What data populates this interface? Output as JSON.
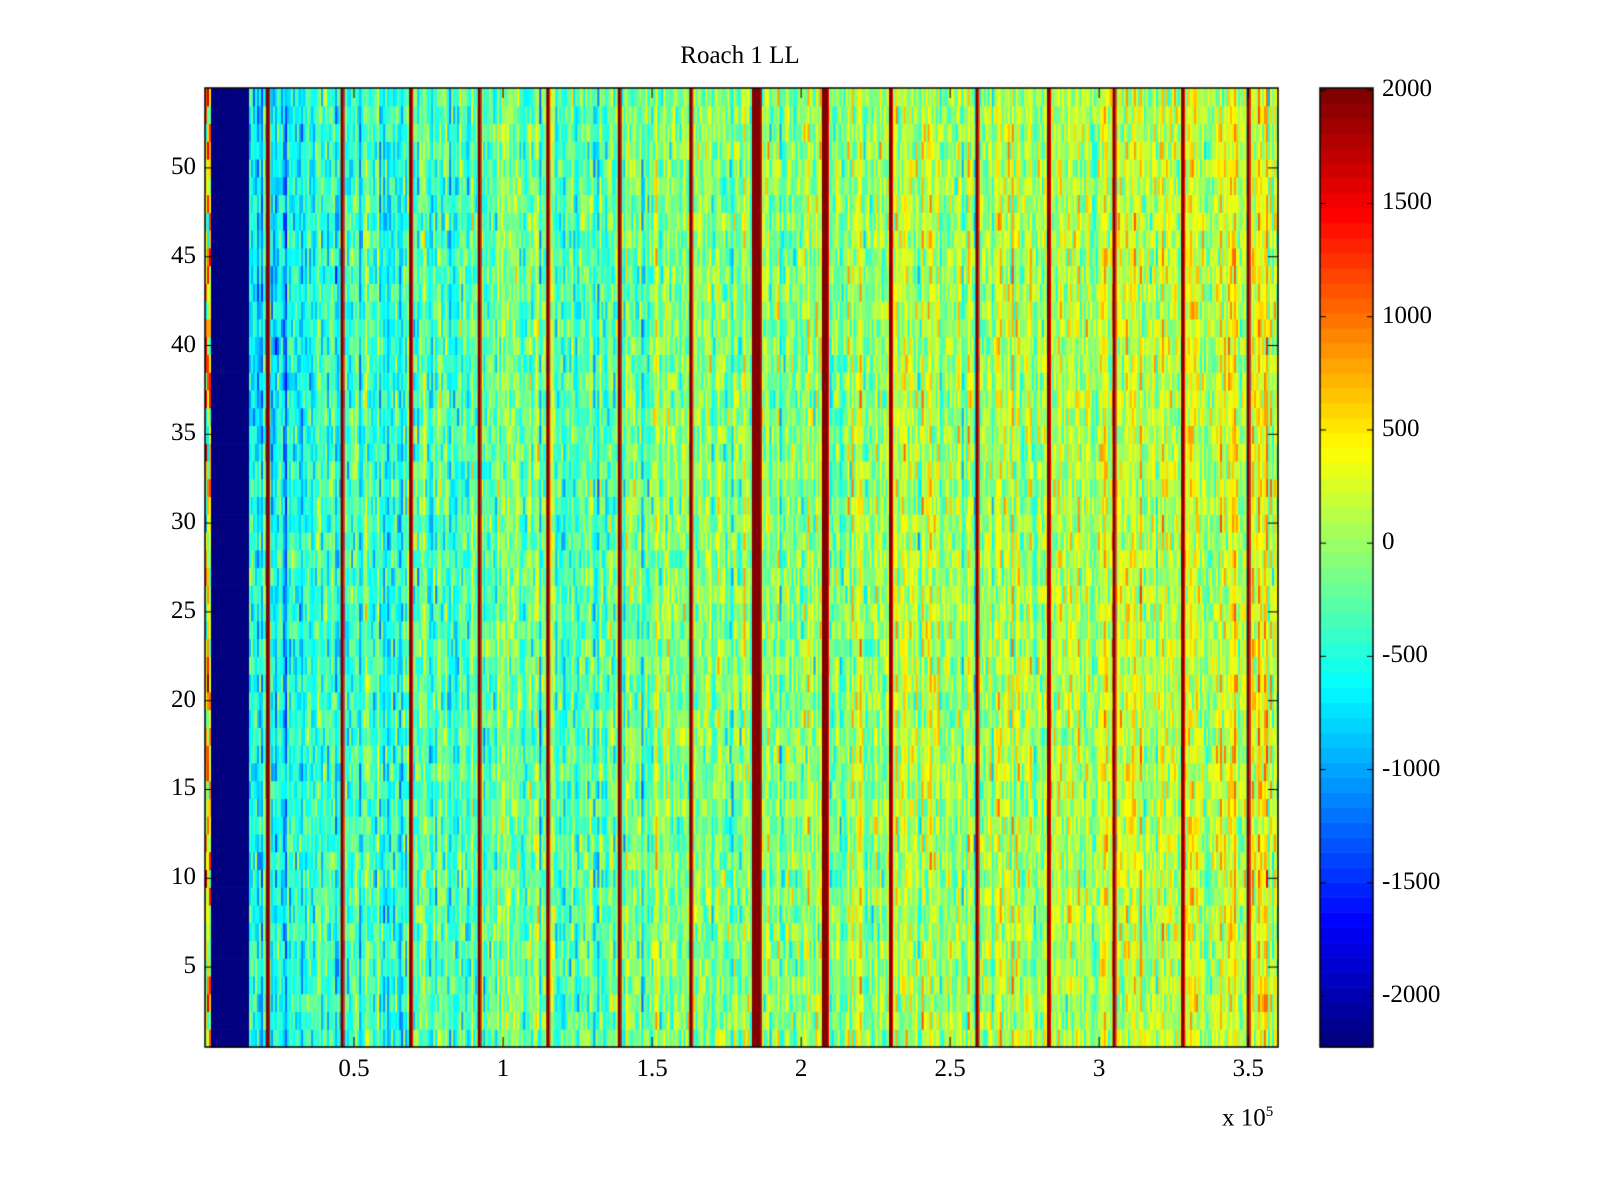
{
  "chart_data": {
    "type": "heatmap",
    "title": "Roach 1 LL",
    "xlabel": "",
    "ylabel": "",
    "x_multiplier_label": "x 10",
    "x_multiplier_exponent": "5",
    "xlim": [
      0,
      3.6
    ],
    "ylim": [
      0.5,
      54.5
    ],
    "rows": 54,
    "xticks": [
      "0.5",
      "1",
      "1.5",
      "2",
      "2.5",
      "3",
      "3.5"
    ],
    "xtick_values": [
      0.5,
      1,
      1.5,
      2,
      2.5,
      3,
      3.5
    ],
    "yticks": [
      "5",
      "10",
      "15",
      "20",
      "25",
      "30",
      "35",
      "40",
      "45",
      "50"
    ],
    "ytick_values": [
      5,
      10,
      15,
      20,
      25,
      30,
      35,
      40,
      45,
      50
    ],
    "colormap": "jet",
    "clim": [
      -2225,
      2010
    ],
    "colorbar_ticks": [
      "2000",
      "1500",
      "1000",
      "500",
      "0",
      "-500",
      "-1000",
      "-1500",
      "-2000"
    ],
    "colorbar_tick_values": [
      2000,
      1500,
      1000,
      500,
      0,
      -500,
      -1000,
      -1500,
      -2000
    ],
    "low_region_x": [
      0.02,
      0.15
    ],
    "low_region_value": -2225,
    "spike_columns_x": [
      0.21,
      0.46,
      0.69,
      0.92,
      1.15,
      1.39,
      1.63,
      1.85,
      2.08,
      2.3,
      2.59,
      2.83,
      3.05,
      3.28,
      3.5
    ],
    "spike_value": 2000,
    "baseline_start_value": -650,
    "baseline_end_value": 250,
    "noise_std": 380
  }
}
